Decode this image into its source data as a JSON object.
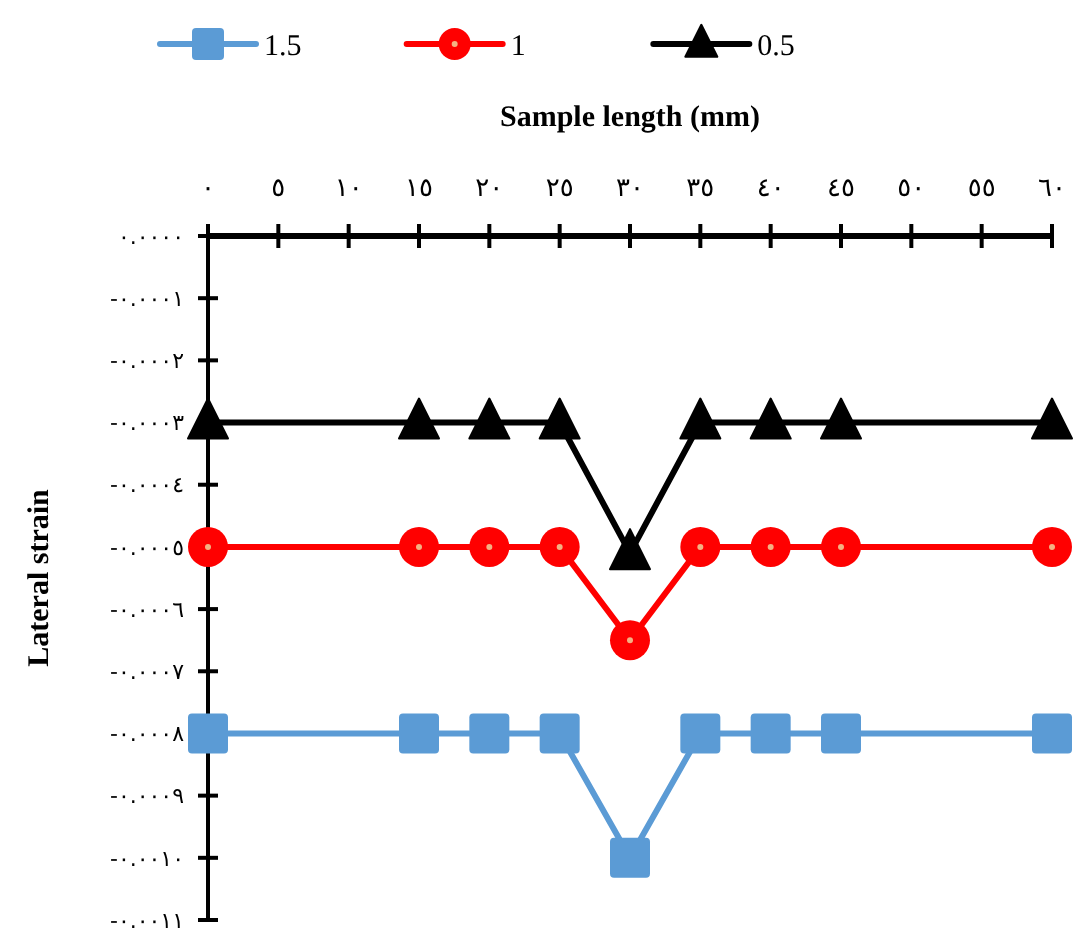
{
  "chart_data": {
    "type": "line",
    "xlabel": "Sample length (mm)",
    "ylabel": "Lateral strain",
    "x": [
      0,
      15,
      20,
      25,
      30,
      35,
      40,
      45,
      60
    ],
    "series": [
      {
        "name": "1.5",
        "color": "#5b9bd5",
        "marker": "square",
        "values": [
          -0.0008,
          -0.0008,
          -0.0008,
          -0.0008,
          -0.001,
          -0.0008,
          -0.0008,
          -0.0008,
          -0.0008
        ]
      },
      {
        "name": "1",
        "color": "#ff0000",
        "marker": "circle",
        "values": [
          -0.0005,
          -0.0005,
          -0.0005,
          -0.0005,
          -0.00065,
          -0.0005,
          -0.0005,
          -0.0005,
          -0.0005
        ]
      },
      {
        "name": "0.5",
        "color": "#000000",
        "marker": "triangle",
        "values": [
          -0.0003,
          -0.0003,
          -0.0003,
          -0.0003,
          -0.00051,
          -0.0003,
          -0.0003,
          -0.0003,
          -0.0003
        ]
      }
    ],
    "xlim": [
      0,
      60
    ],
    "xticks": [
      {
        "value": 0,
        "label": "٠"
      },
      {
        "value": 5,
        "label": "٥"
      },
      {
        "value": 10,
        "label": "١٠"
      },
      {
        "value": 15,
        "label": "١٥"
      },
      {
        "value": 20,
        "label": "٢٠"
      },
      {
        "value": 25,
        "label": "٢٥"
      },
      {
        "value": 30,
        "label": "٣٠"
      },
      {
        "value": 35,
        "label": "٣٥"
      },
      {
        "value": 40,
        "label": "٤٠"
      },
      {
        "value": 45,
        "label": "٤٥"
      },
      {
        "value": 50,
        "label": "٥٠"
      },
      {
        "value": 55,
        "label": "٥٥"
      },
      {
        "value": 60,
        "label": "٦٠"
      }
    ],
    "ylim": [
      -0.0011,
      0
    ],
    "yticks": [
      {
        "value": 0,
        "label": "٠.٠٠٠٠"
      },
      {
        "value": -0.0001,
        "label": "-٠.٠٠٠١"
      },
      {
        "value": -0.0002,
        "label": "-٠.٠٠٠٢"
      },
      {
        "value": -0.0003,
        "label": "-٠.٠٠٠٣"
      },
      {
        "value": -0.0004,
        "label": "-٠.٠٠٠٤"
      },
      {
        "value": -0.0005,
        "label": "-٠.٠٠٠٥"
      },
      {
        "value": -0.0006,
        "label": "-٠.٠٠٠٦"
      },
      {
        "value": -0.0007,
        "label": "-٠.٠٠٠٧"
      },
      {
        "value": -0.0008,
        "label": "-٠.٠٠٠٨"
      },
      {
        "value": -0.0009,
        "label": "-٠.٠٠٠٩"
      },
      {
        "value": -0.001,
        "label": "-٠.٠٠١٠"
      },
      {
        "value": -0.0011,
        "label": "-٠.٠٠١١"
      }
    ],
    "grid": false,
    "legend": "top",
    "line_style": "solid"
  }
}
